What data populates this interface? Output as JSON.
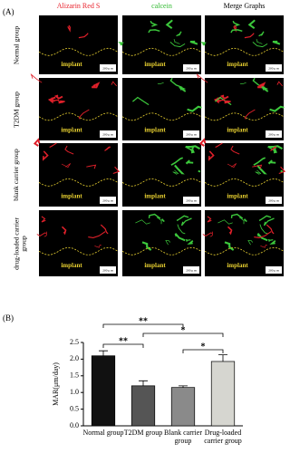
{
  "panel_a": {
    "label": "(A)",
    "columns": [
      {
        "name": "Alizarin Red S",
        "color": "#e8202a"
      },
      {
        "name": "calcein",
        "color": "#2db82d"
      },
      {
        "name": "Merge Graphs",
        "color": "#000000"
      }
    ],
    "rows": [
      "Normal group",
      "T2DM group",
      "blank carrier group",
      "drug-loaded carrier group"
    ],
    "implant_label": "implant",
    "scale_label": "200 μ m"
  },
  "chart_data": {
    "type": "bar",
    "panel_label": "(B)",
    "ylabel": "MAR(μm/day)",
    "categories": [
      "Normal group",
      "T2DM group",
      "Blank carrier group",
      "Drug-loaded carrier group"
    ],
    "values": [
      2.1,
      1.2,
      1.15,
      1.93
    ],
    "errors": [
      0.15,
      0.15,
      0.05,
      0.2
    ],
    "colors": [
      "#111111",
      "#555555",
      "#8a8a8a",
      "#d6d6d0"
    ],
    "ylim": [
      0,
      2.5
    ],
    "yticks": [
      {
        "value": 0,
        "label": "0.0"
      },
      {
        "value": 0.5,
        "label": "0.5"
      },
      {
        "value": 1,
        "label": "1.0"
      },
      {
        "value": 1.5,
        "label": "1.5"
      },
      {
        "value": 2,
        "label": "2.0"
      },
      {
        "value": 2.5,
        "label": "2.5"
      }
    ],
    "annotations": [
      {
        "text": "**",
        "pair": [
          "Normal group",
          "Blank carrier group"
        ]
      },
      {
        "text": "*",
        "pair": [
          "T2DM group",
          "Drug-loaded carrier group"
        ]
      },
      {
        "text": "**",
        "pair": [
          "Normal group",
          "T2DM group"
        ]
      },
      {
        "text": "*",
        "pair": [
          "Blank carrier group",
          "Drug-loaded carrier group"
        ]
      }
    ]
  }
}
